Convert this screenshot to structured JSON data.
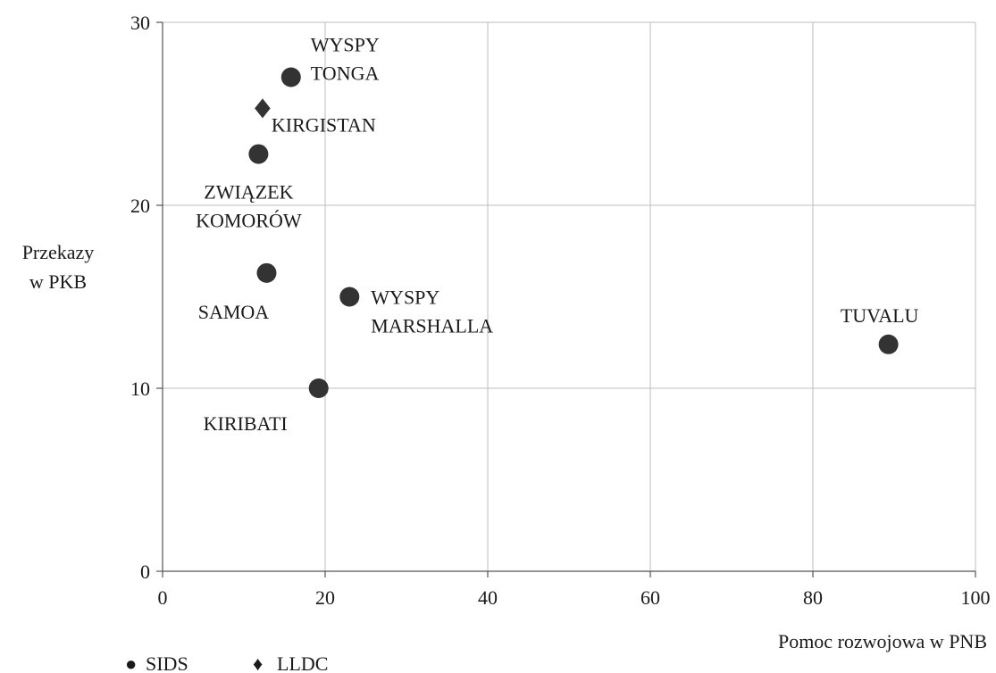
{
  "chart_data": {
    "type": "scatter",
    "xlabel": "Pomoc rozwojowa w PNB",
    "ylabel": [
      "Przekazy",
      "w PKB"
    ],
    "xlim": [
      0,
      100
    ],
    "ylim": [
      0,
      30
    ],
    "xticks": [
      0,
      20,
      40,
      60,
      80,
      100
    ],
    "yticks": [
      0,
      10,
      20,
      30
    ],
    "grid": true,
    "legend_position": "bottom-left",
    "series": [
      {
        "name": "SIDS",
        "marker": "circle",
        "color": "#333333",
        "points": [
          {
            "x": 15.8,
            "y": 27.0,
            "label": [
              "WYSPY",
              "TONGA"
            ]
          },
          {
            "x": 11.8,
            "y": 22.8,
            "label": [
              "ZWIĄZEK",
              "KOMORÓW"
            ]
          },
          {
            "x": 12.8,
            "y": 16.3,
            "label": [
              "SAMOA"
            ]
          },
          {
            "x": 23.0,
            "y": 15.0,
            "label": [
              "WYSPY",
              "MARSHALLA"
            ]
          },
          {
            "x": 19.2,
            "y": 10.0,
            "label": [
              "KIRIBATI"
            ]
          },
          {
            "x": 89.3,
            "y": 12.4,
            "label": [
              "TUVALU"
            ]
          }
        ]
      },
      {
        "name": "LLDC",
        "marker": "diamond",
        "color": "#333333",
        "points": [
          {
            "x": 12.3,
            "y": 25.3,
            "label": [
              "KIRGISTAN"
            ]
          }
        ]
      }
    ],
    "legend": [
      {
        "symbol": "●",
        "label": "SIDS"
      },
      {
        "symbol": "♦",
        "label": "LLDC"
      }
    ]
  }
}
